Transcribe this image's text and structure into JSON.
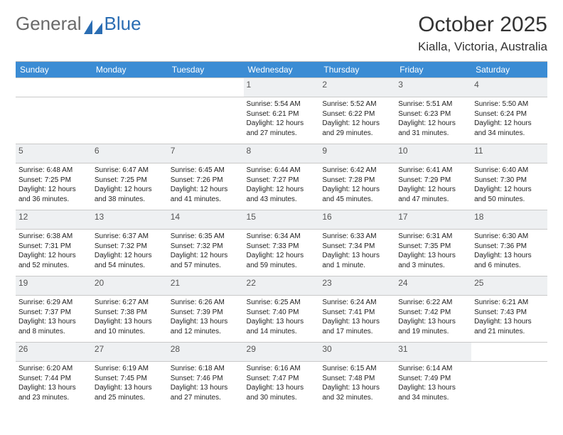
{
  "brand": {
    "part1": "General",
    "part2": "Blue"
  },
  "title": "October 2025",
  "location": "Kialla, Victoria, Australia",
  "colors": {
    "header_bg": "#3b8cd4",
    "header_fg": "#ffffff",
    "daynum_bg": "#eef0f2",
    "rule": "#c9c9c9",
    "brand_gray": "#6a6a6a",
    "brand_blue": "#2a6db3"
  },
  "fonts": {
    "title_size": 30,
    "subtitle_size": 17,
    "day_header_size": 12,
    "daynum_size": 12,
    "body_size": 10
  },
  "day_headers": [
    "Sunday",
    "Monday",
    "Tuesday",
    "Wednesday",
    "Thursday",
    "Friday",
    "Saturday"
  ],
  "weeks": [
    [
      null,
      null,
      null,
      {
        "n": "1",
        "sunrise": "5:54 AM",
        "sunset": "6:21 PM",
        "daylight": "12 hours and 27 minutes."
      },
      {
        "n": "2",
        "sunrise": "5:52 AM",
        "sunset": "6:22 PM",
        "daylight": "12 hours and 29 minutes."
      },
      {
        "n": "3",
        "sunrise": "5:51 AM",
        "sunset": "6:23 PM",
        "daylight": "12 hours and 31 minutes."
      },
      {
        "n": "4",
        "sunrise": "5:50 AM",
        "sunset": "6:24 PM",
        "daylight": "12 hours and 34 minutes."
      }
    ],
    [
      {
        "n": "5",
        "sunrise": "6:48 AM",
        "sunset": "7:25 PM",
        "daylight": "12 hours and 36 minutes."
      },
      {
        "n": "6",
        "sunrise": "6:47 AM",
        "sunset": "7:25 PM",
        "daylight": "12 hours and 38 minutes."
      },
      {
        "n": "7",
        "sunrise": "6:45 AM",
        "sunset": "7:26 PM",
        "daylight": "12 hours and 41 minutes."
      },
      {
        "n": "8",
        "sunrise": "6:44 AM",
        "sunset": "7:27 PM",
        "daylight": "12 hours and 43 minutes."
      },
      {
        "n": "9",
        "sunrise": "6:42 AM",
        "sunset": "7:28 PM",
        "daylight": "12 hours and 45 minutes."
      },
      {
        "n": "10",
        "sunrise": "6:41 AM",
        "sunset": "7:29 PM",
        "daylight": "12 hours and 47 minutes."
      },
      {
        "n": "11",
        "sunrise": "6:40 AM",
        "sunset": "7:30 PM",
        "daylight": "12 hours and 50 minutes."
      }
    ],
    [
      {
        "n": "12",
        "sunrise": "6:38 AM",
        "sunset": "7:31 PM",
        "daylight": "12 hours and 52 minutes."
      },
      {
        "n": "13",
        "sunrise": "6:37 AM",
        "sunset": "7:32 PM",
        "daylight": "12 hours and 54 minutes."
      },
      {
        "n": "14",
        "sunrise": "6:35 AM",
        "sunset": "7:32 PM",
        "daylight": "12 hours and 57 minutes."
      },
      {
        "n": "15",
        "sunrise": "6:34 AM",
        "sunset": "7:33 PM",
        "daylight": "12 hours and 59 minutes."
      },
      {
        "n": "16",
        "sunrise": "6:33 AM",
        "sunset": "7:34 PM",
        "daylight": "13 hours and 1 minute."
      },
      {
        "n": "17",
        "sunrise": "6:31 AM",
        "sunset": "7:35 PM",
        "daylight": "13 hours and 3 minutes."
      },
      {
        "n": "18",
        "sunrise": "6:30 AM",
        "sunset": "7:36 PM",
        "daylight": "13 hours and 6 minutes."
      }
    ],
    [
      {
        "n": "19",
        "sunrise": "6:29 AM",
        "sunset": "7:37 PM",
        "daylight": "13 hours and 8 minutes."
      },
      {
        "n": "20",
        "sunrise": "6:27 AM",
        "sunset": "7:38 PM",
        "daylight": "13 hours and 10 minutes."
      },
      {
        "n": "21",
        "sunrise": "6:26 AM",
        "sunset": "7:39 PM",
        "daylight": "13 hours and 12 minutes."
      },
      {
        "n": "22",
        "sunrise": "6:25 AM",
        "sunset": "7:40 PM",
        "daylight": "13 hours and 14 minutes."
      },
      {
        "n": "23",
        "sunrise": "6:24 AM",
        "sunset": "7:41 PM",
        "daylight": "13 hours and 17 minutes."
      },
      {
        "n": "24",
        "sunrise": "6:22 AM",
        "sunset": "7:42 PM",
        "daylight": "13 hours and 19 minutes."
      },
      {
        "n": "25",
        "sunrise": "6:21 AM",
        "sunset": "7:43 PM",
        "daylight": "13 hours and 21 minutes."
      }
    ],
    [
      {
        "n": "26",
        "sunrise": "6:20 AM",
        "sunset": "7:44 PM",
        "daylight": "13 hours and 23 minutes."
      },
      {
        "n": "27",
        "sunrise": "6:19 AM",
        "sunset": "7:45 PM",
        "daylight": "13 hours and 25 minutes."
      },
      {
        "n": "28",
        "sunrise": "6:18 AM",
        "sunset": "7:46 PM",
        "daylight": "13 hours and 27 minutes."
      },
      {
        "n": "29",
        "sunrise": "6:16 AM",
        "sunset": "7:47 PM",
        "daylight": "13 hours and 30 minutes."
      },
      {
        "n": "30",
        "sunrise": "6:15 AM",
        "sunset": "7:48 PM",
        "daylight": "13 hours and 32 minutes."
      },
      {
        "n": "31",
        "sunrise": "6:14 AM",
        "sunset": "7:49 PM",
        "daylight": "13 hours and 34 minutes."
      },
      null
    ]
  ],
  "labels": {
    "sunrise": "Sunrise:",
    "sunset": "Sunset:",
    "daylight": "Daylight:"
  }
}
